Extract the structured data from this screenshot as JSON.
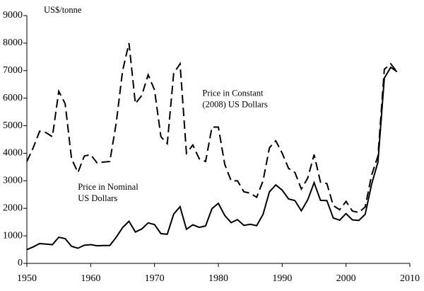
{
  "chart_data": {
    "type": "line",
    "y_axis_label": "US$/tonne",
    "x": [
      1950,
      1951,
      1952,
      1953,
      1954,
      1955,
      1956,
      1957,
      1958,
      1959,
      1960,
      1961,
      1962,
      1963,
      1964,
      1965,
      1966,
      1967,
      1968,
      1969,
      1970,
      1971,
      1972,
      1973,
      1974,
      1975,
      1976,
      1977,
      1978,
      1979,
      1980,
      1981,
      1982,
      1983,
      1984,
      1985,
      1986,
      1987,
      1988,
      1989,
      1990,
      1991,
      1992,
      1993,
      1994,
      1995,
      1996,
      1997,
      1998,
      1999,
      2000,
      2001,
      2002,
      2003,
      2004,
      2005,
      2006,
      2007,
      2008
    ],
    "series": [
      {
        "color": "#000000",
        "dashed": true,
        "values": [
          3700,
          4200,
          4800,
          4750,
          4600,
          6250,
          5800,
          3800,
          3300,
          3900,
          3950,
          3650,
          3680,
          3700,
          5100,
          7000,
          8000,
          5800,
          6100,
          6850,
          6300,
          4600,
          4350,
          6900,
          7250,
          4000,
          4300,
          3800,
          3700,
          4950,
          4950,
          3600,
          3000,
          3000,
          2600,
          2550,
          2400,
          3000,
          4200,
          4450,
          4000,
          3450,
          3300,
          2700,
          3100,
          3950,
          2950,
          2900,
          2100,
          1950,
          2250,
          1900,
          1850,
          2050,
          3200,
          3900,
          7050,
          7250,
          6950
        ]
      },
      {
        "color": "#000000",
        "dashed": false,
        "values": [
          500,
          600,
          720,
          700,
          680,
          950,
          900,
          620,
          550,
          660,
          680,
          640,
          650,
          650,
          950,
          1300,
          1530,
          1140,
          1250,
          1470,
          1410,
          1080,
          1060,
          1790,
          2060,
          1240,
          1400,
          1310,
          1360,
          1990,
          2180,
          1740,
          1480,
          1590,
          1380,
          1420,
          1370,
          1780,
          2600,
          2850,
          2660,
          2340,
          2280,
          1910,
          2310,
          2930,
          2290,
          2280,
          1650,
          1570,
          1810,
          1580,
          1560,
          1780,
          2870,
          3680,
          6730,
          7120,
          6960
        ]
      }
    ],
    "annotations": [
      {
        "lines": [
          "Price in Constant",
          "(2008) US Dollars"
        ],
        "x": 1977.5,
        "y": 6150
      },
      {
        "lines": [
          "Price in Nominal",
          "US Dollars"
        ],
        "x": 1958,
        "y": 2750
      }
    ],
    "xlim": [
      1950,
      2010
    ],
    "xticks": [
      1950,
      1960,
      1970,
      1980,
      1990,
      2000,
      2010
    ],
    "ylim": [
      0,
      9000
    ],
    "yticks": [
      0,
      1000,
      2000,
      3000,
      4000,
      5000,
      6000,
      7000,
      8000,
      9000
    ]
  }
}
